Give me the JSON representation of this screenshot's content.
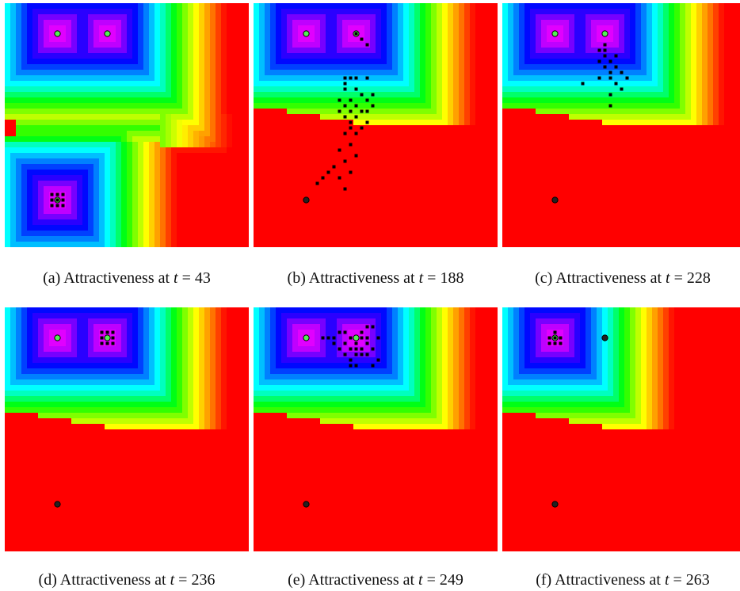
{
  "colors": {
    "background": "#ff0000",
    "agent": "#000000",
    "target_active": "#55ee55",
    "target_inactive": "#222222"
  },
  "panels": [
    {
      "label": "(a)",
      "caption": "Attractiveness at",
      "var": "t",
      "eq": "=",
      "time": "43",
      "active_targets": [
        0,
        1,
        2
      ],
      "barrier": 1
    },
    {
      "label": "(b)",
      "caption": "Attractiveness at",
      "var": "t",
      "eq": "=",
      "time": "188",
      "active_targets": [
        0,
        1
      ],
      "barrier": 2
    },
    {
      "label": "(c)",
      "caption": "Attractiveness at",
      "var": "t",
      "eq": "=",
      "time": "228",
      "active_targets": [
        0,
        1
      ],
      "barrier": 2
    },
    {
      "label": "(d)",
      "caption": "Attractiveness at",
      "var": "t",
      "eq": "=",
      "time": "236",
      "active_targets": [
        0,
        1
      ],
      "barrier": 2
    },
    {
      "label": "(e)",
      "caption": "Attractiveness at",
      "var": "t",
      "eq": "=",
      "time": "249",
      "active_targets": [
        0,
        1
      ],
      "barrier": 2
    },
    {
      "label": "(f)",
      "caption": "Attractiveness at",
      "var": "t",
      "eq": "=",
      "time": "263",
      "active_targets": [
        0
      ],
      "barrier": 2
    }
  ]
}
